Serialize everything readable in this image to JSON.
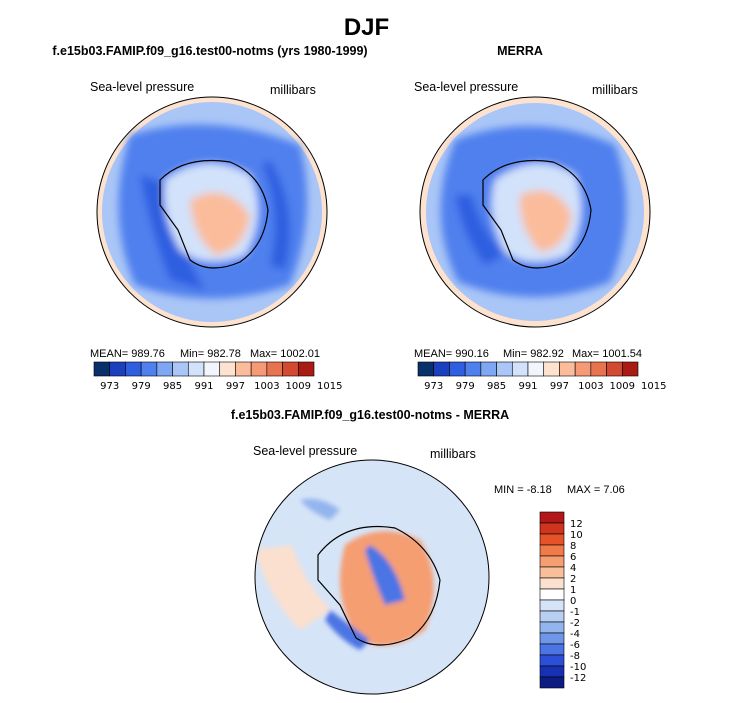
{
  "figure": {
    "title": "DJF",
    "panels": [
      {
        "title": "f.e15b03.FAMIP.f09_g16.test00-notms (yrs 1980-1999)",
        "variable": "Sea-level pressure",
        "units": "millibars",
        "stats": {
          "mean": "MEAN= 989.76",
          "min": "Min= 982.78",
          "max": "Max= 1002.01"
        }
      },
      {
        "title": "MERRA",
        "variable": "Sea-level pressure",
        "units": "millibars",
        "stats": {
          "mean": "MEAN= 990.16",
          "min": "Min= 982.92",
          "max": "Max= 1001.54"
        }
      },
      {
        "title": "f.e15b03.FAMIP.f09_g16.test00-notms - MERRA",
        "variable": "Sea-level pressure",
        "units": "millibars",
        "stats": {
          "min": "MIN = -8.18",
          "max": "MAX = 7.06"
        }
      }
    ],
    "colors": {
      "coastline": "#000000"
    }
  },
  "chart_data": [
    {
      "type": "heatmap",
      "title": "f.e15b03.FAMIP.f09_g16.test00-notms (yrs 1980-1999)",
      "projection": "south polar stereographic",
      "variable": "Sea-level pressure",
      "units": "millibars",
      "mean": 989.76,
      "min": 982.78,
      "max": 1002.01,
      "colorbar": {
        "orientation": "horizontal",
        "levels": [
          973,
          979,
          985,
          991,
          997,
          1003,
          1009,
          1015
        ],
        "colors": [
          "#08306b",
          "#1c3fc0",
          "#2f5fe0",
          "#4f80ee",
          "#7ea6f3",
          "#aac6f7",
          "#d2e2fb",
          "#f2f5fb",
          "#fde3cf",
          "#fbbc9b",
          "#f49a77",
          "#e8734f",
          "#d24a31",
          "#a81c14"
        ]
      }
    },
    {
      "type": "heatmap",
      "title": "MERRA",
      "projection": "south polar stereographic",
      "variable": "Sea-level pressure",
      "units": "millibars",
      "mean": 990.16,
      "min": 982.92,
      "max": 1001.54,
      "colorbar": {
        "orientation": "horizontal",
        "levels": [
          973,
          979,
          985,
          991,
          997,
          1003,
          1009,
          1015
        ],
        "colors": [
          "#08306b",
          "#1c3fc0",
          "#2f5fe0",
          "#4f80ee",
          "#7ea6f3",
          "#aac6f7",
          "#d2e2fb",
          "#f2f5fb",
          "#fde3cf",
          "#fbbc9b",
          "#f49a77",
          "#e8734f",
          "#d24a31",
          "#a81c14"
        ]
      }
    },
    {
      "type": "heatmap",
      "title": "f.e15b03.FAMIP.f09_g16.test00-notms - MERRA",
      "projection": "south polar stereographic",
      "variable": "Sea-level pressure",
      "units": "millibars",
      "min": -8.18,
      "max": 7.06,
      "colorbar": {
        "orientation": "vertical",
        "levels": [
          12,
          10,
          8,
          6,
          4,
          2,
          1,
          0,
          -1,
          -2,
          -4,
          -6,
          -8,
          -10,
          -12
        ],
        "colors": [
          "#b2171a",
          "#d0341f",
          "#e65328",
          "#f07a48",
          "#f59e72",
          "#f9bf9b",
          "#fbe0cf",
          "#ffffff",
          "#d6e4f7",
          "#b8cff3",
          "#93b5ee",
          "#6f97e9",
          "#4b74e4",
          "#2d4fd8",
          "#1730b4",
          "#0d1c82"
        ]
      }
    }
  ]
}
